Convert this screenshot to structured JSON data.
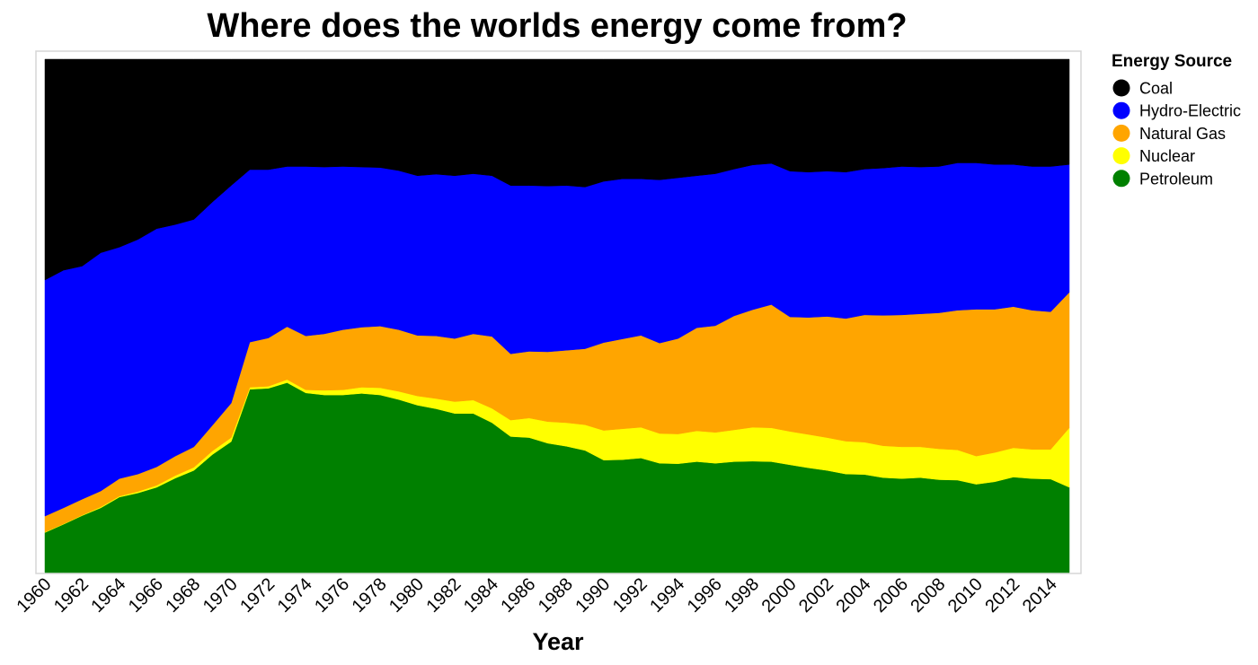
{
  "chart_data": {
    "type": "area",
    "stacking": "percent",
    "title": "Where does the worlds energy come from?",
    "xlabel": "Year",
    "ylabel": "",
    "grid": false,
    "legend_position": "right",
    "legend_title": "Energy Source",
    "x": [
      1960,
      1961,
      1962,
      1963,
      1964,
      1965,
      1966,
      1967,
      1968,
      1969,
      1970,
      1971,
      1972,
      1973,
      1974,
      1975,
      1976,
      1977,
      1978,
      1979,
      1980,
      1981,
      1982,
      1983,
      1984,
      1985,
      1986,
      1987,
      1988,
      1989,
      1990,
      1991,
      1992,
      1993,
      1994,
      1995,
      1996,
      1997,
      1998,
      1999,
      2000,
      2001,
      2002,
      2003,
      2004,
      2005,
      2006,
      2007,
      2008,
      2009,
      2010,
      2011,
      2012,
      2013,
      2014,
      2015
    ],
    "x_ticks": [
      "1960",
      "1962",
      "1964",
      "1966",
      "1968",
      "1970",
      "1972",
      "1974",
      "1976",
      "1978",
      "1980",
      "1982",
      "1984",
      "1986",
      "1988",
      "1990",
      "1992",
      "1994",
      "1996",
      "1998",
      "2000",
      "2002",
      "2004",
      "2006",
      "2008",
      "2010",
      "2012",
      "2014"
    ],
    "series": [
      {
        "name": "Petroleum",
        "color": "#008000",
        "values": [
          7.8,
          9.4,
          11.1,
          12.6,
          14.7,
          15.5,
          16.6,
          18.4,
          19.9,
          23.0,
          25.5,
          35.7,
          35.9,
          37.0,
          35.0,
          34.6,
          34.6,
          34.9,
          34.6,
          33.7,
          32.6,
          31.9,
          31.0,
          31.0,
          29.2,
          26.5,
          26.3,
          25.2,
          24.6,
          23.8,
          21.9,
          22.0,
          22.3,
          21.3,
          21.2,
          21.6,
          21.3,
          21.6,
          21.7,
          21.6,
          21.0,
          20.4,
          19.9,
          19.2,
          19.1,
          18.5,
          18.3,
          18.5,
          18.1,
          18.0,
          17.2,
          17.7,
          18.6,
          18.3,
          18.2,
          16.6
        ],
        "labels": []
      },
      {
        "name": "Nuclear",
        "color": "#ffff00",
        "values": [
          0.1,
          0.1,
          0.1,
          0.2,
          0.2,
          0.3,
          0.4,
          0.5,
          0.6,
          0.7,
          0.8,
          0.4,
          0.4,
          0.6,
          0.6,
          0.9,
          1.0,
          1.2,
          1.4,
          1.6,
          1.8,
          2.0,
          2.3,
          2.6,
          2.8,
          3.2,
          3.8,
          4.2,
          4.6,
          5.0,
          5.8,
          6.0,
          6.0,
          5.8,
          5.8,
          6.0,
          6.0,
          6.2,
          6.6,
          6.6,
          6.5,
          6.5,
          6.4,
          6.4,
          6.3,
          6.2,
          6.2,
          6.0,
          6.0,
          5.9,
          5.5,
          5.7,
          5.7,
          5.7,
          5.8,
          11.6
        ],
        "labels": []
      },
      {
        "name": "Natural Gas",
        "color": "#ffa500",
        "values": [
          3.1,
          3.1,
          3.1,
          3.1,
          3.4,
          3.4,
          3.6,
          3.8,
          4.0,
          5.0,
          6.7,
          8.8,
          9.4,
          10.3,
          10.5,
          11.0,
          11.7,
          11.7,
          12.0,
          12.0,
          11.8,
          12.2,
          12.3,
          12.9,
          14.0,
          12.9,
          13.0,
          13.6,
          14.1,
          14.8,
          17.1,
          17.5,
          17.9,
          17.6,
          18.6,
          20.1,
          20.8,
          22.2,
          22.9,
          24.0,
          22.3,
          22.8,
          23.6,
          23.9,
          24.8,
          25.4,
          25.7,
          25.9,
          26.5,
          27.2,
          28.6,
          27.9,
          27.5,
          27.1,
          26.8,
          26.4
        ],
        "labels": []
      },
      {
        "name": "Hydro-Electric",
        "color": "#0000ff",
        "values": [
          46.0,
          46.3,
          45.4,
          46.4,
          45.1,
          45.7,
          46.4,
          45.1,
          44.3,
          43.5,
          42.4,
          33.6,
          32.8,
          31.2,
          33.0,
          32.5,
          31.8,
          31.2,
          30.9,
          31.0,
          31.1,
          31.5,
          31.7,
          31.2,
          31.3,
          32.8,
          32.3,
          32.3,
          32.1,
          31.5,
          31.4,
          31.2,
          30.5,
          31.8,
          31.3,
          29.6,
          29.6,
          28.6,
          28.2,
          27.5,
          28.4,
          28.3,
          28.3,
          28.5,
          28.4,
          28.7,
          28.9,
          28.6,
          28.5,
          28.7,
          28.5,
          28.2,
          27.7,
          28.0,
          28.3,
          24.9
        ],
        "labels": []
      },
      {
        "name": "Coal",
        "color": "#000000",
        "values": [
          43.0,
          41.1,
          40.3,
          37.7,
          36.6,
          35.1,
          33.0,
          32.2,
          31.2,
          27.8,
          24.6,
          21.5,
          21.5,
          20.9,
          20.9,
          21.0,
          20.9,
          21.0,
          21.1,
          21.7,
          22.7,
          22.4,
          22.7,
          22.3,
          22.7,
          24.6,
          24.6,
          24.7,
          24.6,
          24.9,
          23.8,
          23.3,
          23.3,
          23.5,
          23.1,
          22.7,
          22.3,
          21.4,
          20.6,
          20.3,
          21.8,
          22.0,
          21.8,
          22.0,
          21.4,
          21.2,
          20.9,
          21.0,
          20.9,
          20.2,
          20.2,
          20.5,
          20.5,
          20.9,
          20.9,
          20.5
        ],
        "labels": []
      }
    ],
    "legend": [
      "Coal",
      "Hydro-Electric",
      "Natural Gas",
      "Nuclear",
      "Petroleum"
    ]
  }
}
